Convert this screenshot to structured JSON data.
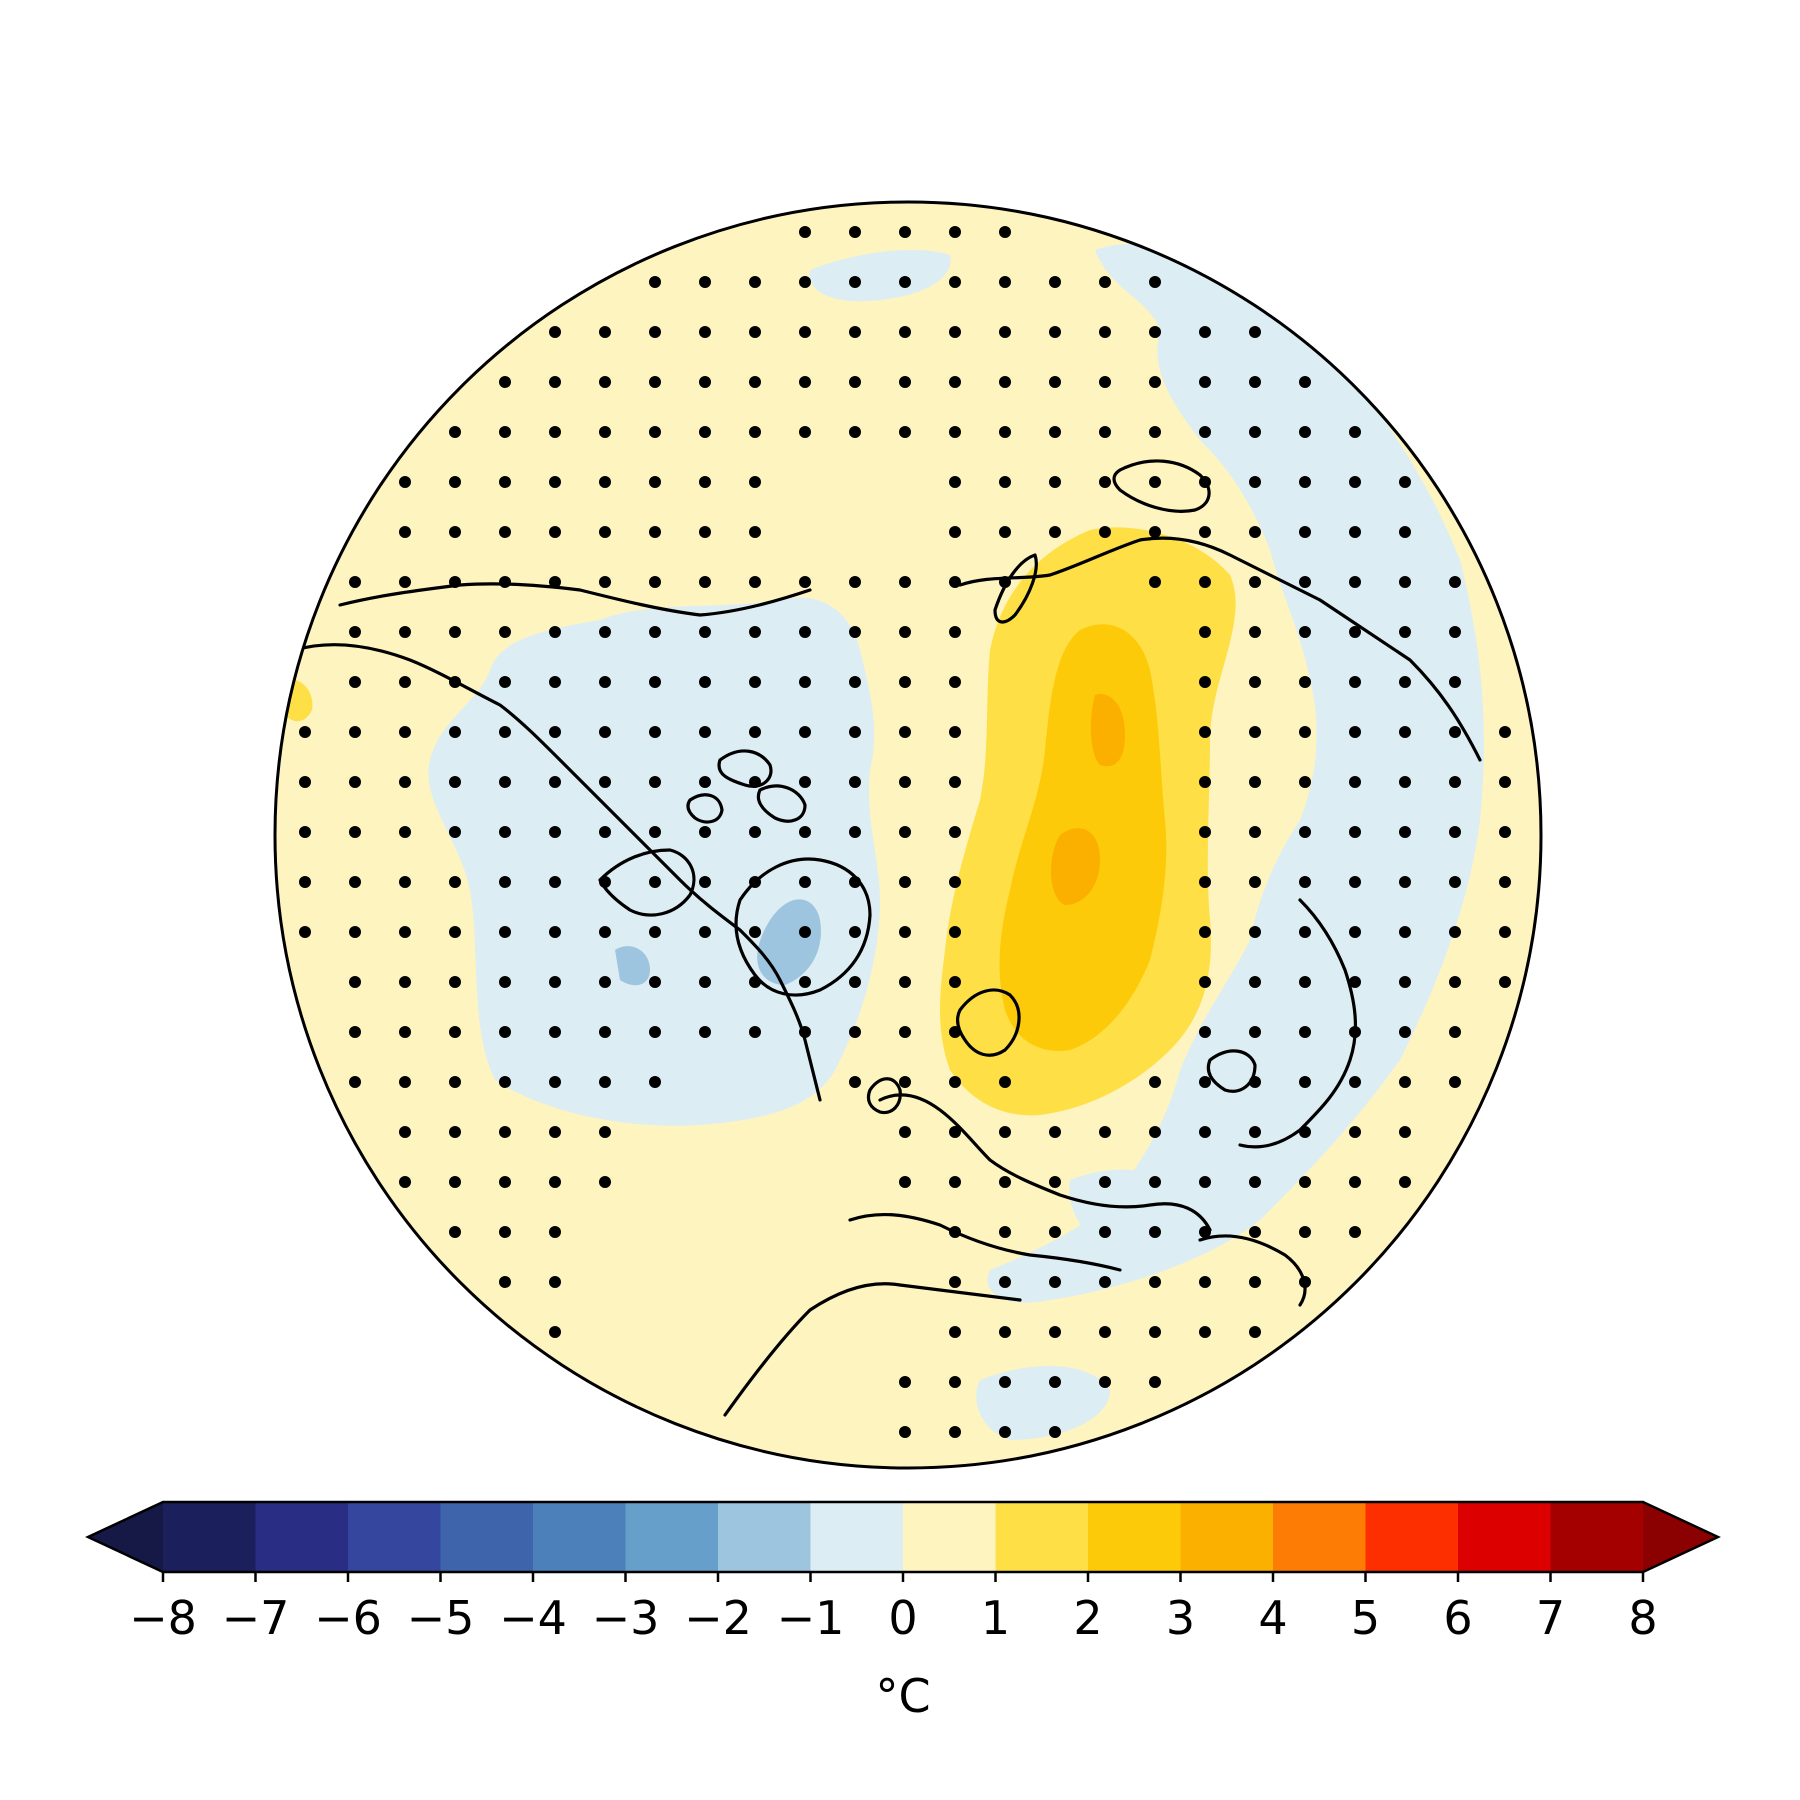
{
  "map": {
    "projection": "north-polar-stereographic",
    "field": "temperature anomaly",
    "stippling": "significance dots",
    "background_color": "#fef4c0",
    "regions": [
      {
        "name": "warm-anomaly-siberia",
        "level": "1-2",
        "color": "#fee046"
      },
      {
        "name": "warm-anomaly-siberia-core",
        "level": "2-3",
        "color": "#fdca0a"
      },
      {
        "name": "warm-anomaly-peak",
        "level": "3-4",
        "color": "#fbb000"
      },
      {
        "name": "cool-anomaly-north-america",
        "level": "-1-0",
        "color": "#ddedf4"
      },
      {
        "name": "cool-anomaly-east-asia",
        "level": "-1-0",
        "color": "#ddedf4"
      },
      {
        "name": "cool-anomaly-pacific",
        "level": "-1-0",
        "color": "#ddedf4"
      },
      {
        "name": "cool-anomaly-greenland",
        "level": "-2--1",
        "color": "#9ec5df"
      }
    ]
  },
  "colorbar": {
    "unit": "°C",
    "ticks": [
      "−8",
      "−7",
      "−6",
      "−5",
      "−4",
      "−3",
      "−2",
      "−1",
      "0",
      "1",
      "2",
      "3",
      "4",
      "5",
      "6",
      "7",
      "8"
    ],
    "colors": [
      "#1b1f5b",
      "#2a2d84",
      "#35469e",
      "#3e65ab",
      "#4b80ba",
      "#679fcb",
      "#9ec5df",
      "#ddedf4",
      "#fef4c0",
      "#fee046",
      "#fdca0a",
      "#fbb000",
      "#fd7c05",
      "#fd2f00",
      "#dd0000",
      "#a50000"
    ],
    "extend_low_color": "#161846",
    "extend_high_color": "#8b0000"
  }
}
